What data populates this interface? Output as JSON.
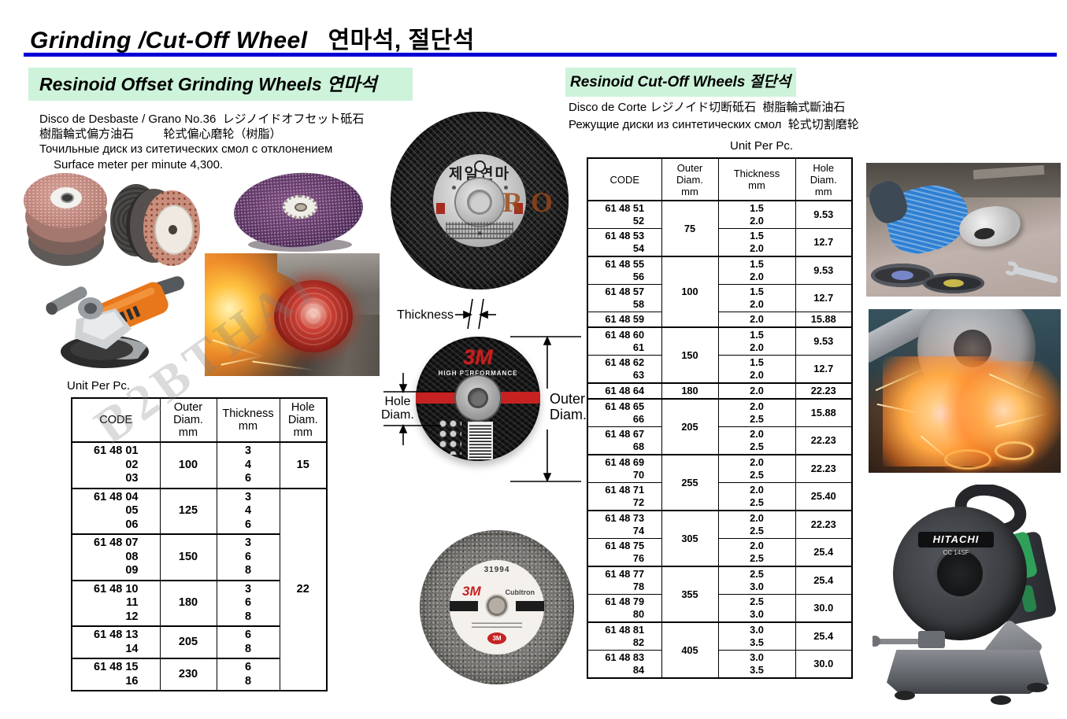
{
  "title": {
    "en": "Grinding /Cut-Off Wheel",
    "kr": "연마석, 절단석"
  },
  "watermark": {
    "diagonal": "B2BTHAI",
    "accent": "RO"
  },
  "left": {
    "header": "Resinoid Offset Grinding Wheels 연마석",
    "desc1": "Disco de Desbaste / Grano No.36  レジノイドオフセット砥石",
    "desc2": "樹脂輪式偏方油石         轮式偏心磨轮（树脂）",
    "desc3": "Точильные диск из ситетических смол с отклонением",
    "desc4": "Surface meter per minute 4,300.",
    "unit_label": "Unit Per Pc.",
    "table": {
      "headers": {
        "code": "CODE",
        "outer": "Outer\nDiam.\nmm",
        "thickness": "Thickness\nmm",
        "hole": "Hole\nDiam.\nmm"
      },
      "rows": [
        {
          "codes": [
            "61 48 01",
            "02",
            "03"
          ],
          "outer": "100",
          "outerSpan": 1,
          "thickness": [
            "3",
            "4",
            "6"
          ],
          "hole": "15",
          "holeSpan": 1,
          "group": true
        },
        {
          "codes": [
            "61 48 04",
            "05",
            "06"
          ],
          "outer": "125",
          "outerSpan": 1,
          "thickness": [
            "3",
            "4",
            "6"
          ],
          "hole": "22",
          "holeSpan": 5,
          "group": true
        },
        {
          "codes": [
            "61 48 07",
            "08",
            "09"
          ],
          "outer": "150",
          "outerSpan": 1,
          "thickness": [
            "3",
            "6",
            "8"
          ],
          "group": true
        },
        {
          "codes": [
            "61 48 10",
            "11",
            "12"
          ],
          "outer": "180",
          "outerSpan": 1,
          "thickness": [
            "3",
            "6",
            "8"
          ],
          "group": true
        },
        {
          "codes": [
            "61 48 13",
            "14"
          ],
          "outer": "205",
          "outerSpan": 1,
          "thickness": [
            "6",
            "8"
          ],
          "group": true
        },
        {
          "codes": [
            "61 48 15",
            "16"
          ],
          "outer": "230",
          "outerSpan": 1,
          "thickness": [
            "6",
            "8"
          ],
          "group": true
        }
      ]
    }
  },
  "right": {
    "header": "Resinoid Cut-Off Wheels  절단석",
    "desc1": "Disco de Corte レジノイド切断砥石  樹脂輪式斷油石",
    "desc2": "Режущие диски из синтетических смол  轮式切割磨轮",
    "unit_label": "Unit Per Pc.",
    "table": {
      "headers": {
        "code": "CODE",
        "outer": "Outer\nDiam.\nmm",
        "thickness": "Thickness\nmm",
        "hole": "Hole\nDiam.\nmm"
      },
      "rows": [
        {
          "codes": [
            "61 48 51",
            "52"
          ],
          "outer": "75",
          "outerSpan": 2,
          "thickness": [
            "1.5",
            "2.0"
          ],
          "hole": "9.53",
          "group": true
        },
        {
          "codes": [
            "61 48 53",
            "54"
          ],
          "thickness": [
            "1.5",
            "2.0"
          ],
          "hole": "12.7"
        },
        {
          "codes": [
            "61 48 55",
            "56"
          ],
          "outer": "100",
          "outerSpan": 3,
          "thickness": [
            "1.5",
            "2.0"
          ],
          "hole": "9.53",
          "group": true
        },
        {
          "codes": [
            "61 48 57",
            "58"
          ],
          "thickness": [
            "1.5",
            "2.0"
          ],
          "hole": "12.7"
        },
        {
          "codes": [
            "61 48 59"
          ],
          "thickness": [
            "2.0"
          ],
          "hole": "15.88"
        },
        {
          "codes": [
            "61 48 60",
            "61"
          ],
          "outer": "150",
          "outerSpan": 2,
          "thickness": [
            "1.5",
            "2.0"
          ],
          "hole": "9.53",
          "group": true
        },
        {
          "codes": [
            "61 48 62",
            "63"
          ],
          "thickness": [
            "1.5",
            "2.0"
          ],
          "hole": "12.7"
        },
        {
          "codes": [
            "61 48 64"
          ],
          "outer": "180",
          "outerSpan": 1,
          "thickness": [
            "2.0"
          ],
          "hole": "22.23",
          "group": true
        },
        {
          "codes": [
            "61 48 65",
            "66"
          ],
          "outer": "205",
          "outerSpan": 2,
          "thickness": [
            "2.0",
            "2.5"
          ],
          "hole": "15.88",
          "group": true
        },
        {
          "codes": [
            "61 48 67",
            "68"
          ],
          "thickness": [
            "2.0",
            "2.5"
          ],
          "hole": "22.23"
        },
        {
          "codes": [
            "61 48 69",
            "70"
          ],
          "outer": "255",
          "outerSpan": 2,
          "thickness": [
            "2.0",
            "2.5"
          ],
          "hole": "22.23",
          "group": true
        },
        {
          "codes": [
            "61 48 71",
            "72"
          ],
          "thickness": [
            "2.0",
            "2.5"
          ],
          "hole": "25.40"
        },
        {
          "codes": [
            "61 48 73",
            "74"
          ],
          "outer": "305",
          "outerSpan": 2,
          "thickness": [
            "2.0",
            "2.5"
          ],
          "hole": "22.23",
          "group": true
        },
        {
          "codes": [
            "61 48 75",
            "76"
          ],
          "thickness": [
            "2.0",
            "2.5"
          ],
          "hole": "25.4"
        },
        {
          "codes": [
            "61 48 77",
            "78"
          ],
          "outer": "355",
          "outerSpan": 2,
          "thickness": [
            "2.5",
            "3.0"
          ],
          "hole": "25.4",
          "group": true
        },
        {
          "codes": [
            "61 48 79",
            "80"
          ],
          "thickness": [
            "2.5",
            "3.0"
          ],
          "hole": "30.0"
        },
        {
          "codes": [
            "61 48 81",
            "82"
          ],
          "outer": "405",
          "outerSpan": 2,
          "thickness": [
            "3.0",
            "3.5"
          ],
          "hole": "25.4",
          "group": true
        },
        {
          "codes": [
            "61 48 83",
            "84"
          ],
          "thickness": [
            "3.0",
            "3.5"
          ],
          "hole": "30.0"
        }
      ]
    }
  },
  "diagram": {
    "thickness_label": "Thickness",
    "hole_label": "Hole\nDiam.",
    "outer_label": "Outer\nDiam."
  },
  "images": {
    "korean_wheel_brand": "제일연마",
    "wheel3m_brand": "3M",
    "wheel3m_series": "HIGH PERFORMANCE",
    "gray_wheel_number": "31994",
    "gray_wheel_brand": "3M",
    "gray_wheel_series": "Cubitron",
    "gray_wheel_logo": "3M",
    "hitachi_brand": "HITACHI",
    "hitachi_model": "CC 14SF"
  }
}
